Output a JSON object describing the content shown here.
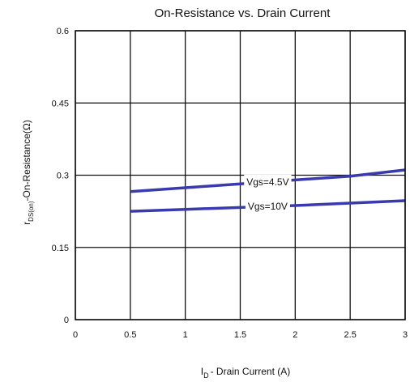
{
  "chart_data": {
    "type": "line",
    "title": "On-Resistance vs. Drain Current",
    "xlabel": {
      "main": "I",
      "sub": "D",
      "rest": "- Drain Current (A)"
    },
    "ylabel": {
      "main": "r",
      "sub": "DS(on)",
      "rest": "-On-Resistance(Ω)"
    },
    "xlim": [
      0,
      3
    ],
    "ylim": [
      0,
      0.6
    ],
    "x_ticks": [
      0,
      0.5,
      1,
      1.5,
      2,
      2.5,
      3
    ],
    "x_tick_labels": [
      "0",
      "0.5",
      "1",
      "1.5",
      "2",
      "2.5",
      "3"
    ],
    "y_ticks": [
      0,
      0.15,
      0.3,
      0.45,
      0.6
    ],
    "y_tick_labels": [
      "0",
      "0.15",
      "0.3",
      "0.45",
      "0.6"
    ],
    "grid": true,
    "series": [
      {
        "name": "Vgs=4.5V",
        "color": "#3a3ab0",
        "x": [
          0.5,
          1,
          1.5,
          2,
          2.5,
          3
        ],
        "y": [
          0.266,
          0.274,
          0.282,
          0.29,
          0.298,
          0.311
        ],
        "label_at_x": 1.75
      },
      {
        "name": "Vgs=10V",
        "color": "#3a3ab0",
        "x": [
          0.5,
          1,
          1.5,
          2,
          2.5,
          3
        ],
        "y": [
          0.225,
          0.229,
          0.233,
          0.237,
          0.242,
          0.247
        ],
        "label_at_x": 1.75
      }
    ]
  }
}
